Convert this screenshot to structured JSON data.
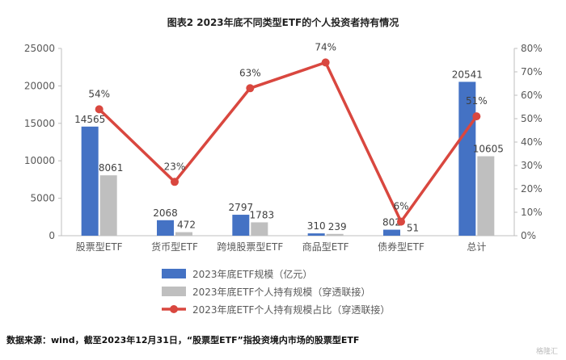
{
  "chart_data": {
    "type": "bar",
    "title": "图表2  2023年底不同类型ETF的个人投资者持有情况",
    "categories": [
      "股票型ETF",
      "货币型ETF",
      "跨境股票型ETF",
      "商品型ETF",
      "债券型ETF",
      "总计"
    ],
    "series": [
      {
        "name": "2023年底ETF规模（亿元）",
        "type": "bar",
        "color": "#4472C4",
        "values": [
          14565,
          2068,
          2797,
          310,
          802,
          20541
        ]
      },
      {
        "name": "2023年底ETF个人持有规模（穿透联接）",
        "type": "bar",
        "color": "#BFBFBF",
        "values": [
          8061,
          472,
          1783,
          239,
          51,
          10605
        ]
      },
      {
        "name": "2023年底ETF个人持有规模占比（穿透联接）",
        "type": "line",
        "axis": "right",
        "color": "#D9473F",
        "values": [
          54,
          23,
          63,
          74,
          6,
          51
        ]
      }
    ],
    "ylim": [
      0,
      25000
    ],
    "y_ticks": [
      "0",
      "5000",
      "10000",
      "15000",
      "20000",
      "25000"
    ],
    "y2lim": [
      0,
      80
    ],
    "y2_ticks": [
      "0%",
      "10%",
      "20%",
      "30%",
      "40%",
      "50%",
      "60%",
      "70%",
      "80%"
    ],
    "value_labels_bar1": [
      "14565",
      "2068",
      "2797",
      "310",
      "802",
      "20541"
    ],
    "value_labels_bar2": [
      "8061",
      "472",
      "1783",
      "239",
      "51",
      "10605"
    ],
    "value_labels_line": [
      "54%",
      "23%",
      "63%",
      "74%",
      "6%",
      "51%"
    ],
    "grid": false,
    "legend_position": "bottom"
  },
  "source": "数据来源：wind，截至2023年12月31日，“股票型ETF”指投资境内市场的股票型ETF",
  "watermark": "格隆汇"
}
